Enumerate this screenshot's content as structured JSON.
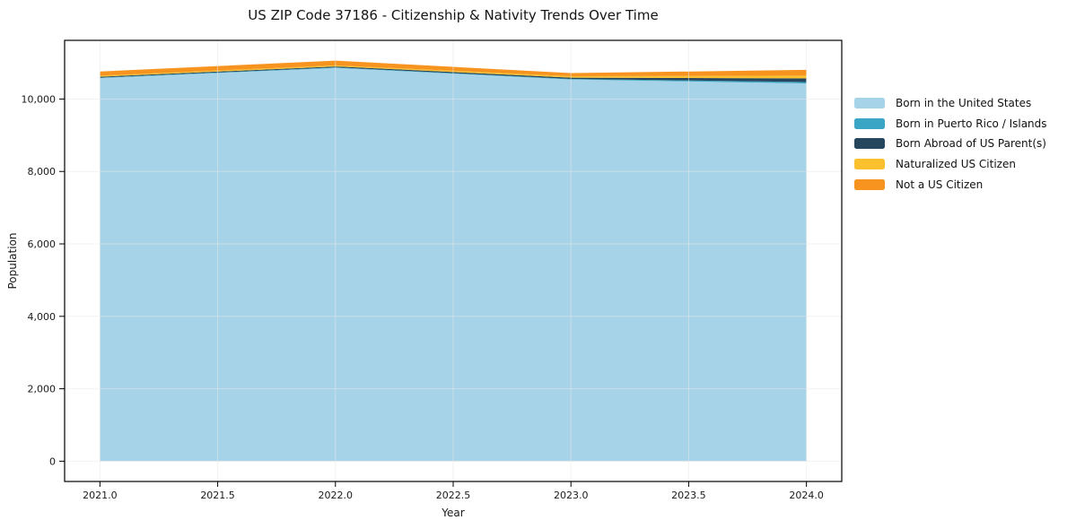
{
  "chart": {
    "title": "US ZIP Code 37186 - Citizenship & Nativity Trends Over Time",
    "xlabel": "Year",
    "ylabel": "Population"
  },
  "chart_data": {
    "type": "area",
    "stacked": true,
    "title": "US ZIP Code 37186 - Citizenship & Nativity Trends Over Time",
    "xlabel": "Year",
    "ylabel": "Population",
    "x": [
      2021,
      2022,
      2023,
      2024
    ],
    "series": [
      {
        "name": "Born in the United States",
        "color": "#a6d3e8",
        "values": [
          10580,
          10860,
          10540,
          10430
        ]
      },
      {
        "name": "Born in Puerto Rico / Islands",
        "color": "#3aa5c4",
        "values": [
          10,
          15,
          15,
          40
        ]
      },
      {
        "name": "Born Abroad of US Parent(s)",
        "color": "#25465c",
        "values": [
          25,
          25,
          35,
          100
        ]
      },
      {
        "name": "Naturalized US Citizen",
        "color": "#fbc02d",
        "values": [
          30,
          30,
          40,
          75
        ]
      },
      {
        "name": "Not a US Citizen",
        "color": "#f79420",
        "values": [
          115,
          130,
          85,
          160
        ]
      }
    ],
    "xlim": [
      2020.85,
      2024.15
    ],
    "ylim": [
      -560,
      11620
    ],
    "xticks": {
      "values": [
        2021.0,
        2021.5,
        2022.0,
        2022.5,
        2023.0,
        2023.5,
        2024.0
      ],
      "labels": [
        "2021.0",
        "2021.5",
        "2022.0",
        "2022.5",
        "2023.0",
        "2023.5",
        "2024.0"
      ]
    },
    "yticks": {
      "values": [
        0,
        2000,
        4000,
        6000,
        8000,
        10000
      ],
      "labels": [
        "0",
        "2,000",
        "4,000",
        "6,000",
        "8,000",
        "10,000"
      ]
    },
    "grid": true,
    "legend_position": "right of plot, frameless"
  },
  "colors": {
    "grid": "#e7e7e7",
    "spine": "#000000",
    "tick_label": "#1a1a1a",
    "background": "#ffffff"
  }
}
